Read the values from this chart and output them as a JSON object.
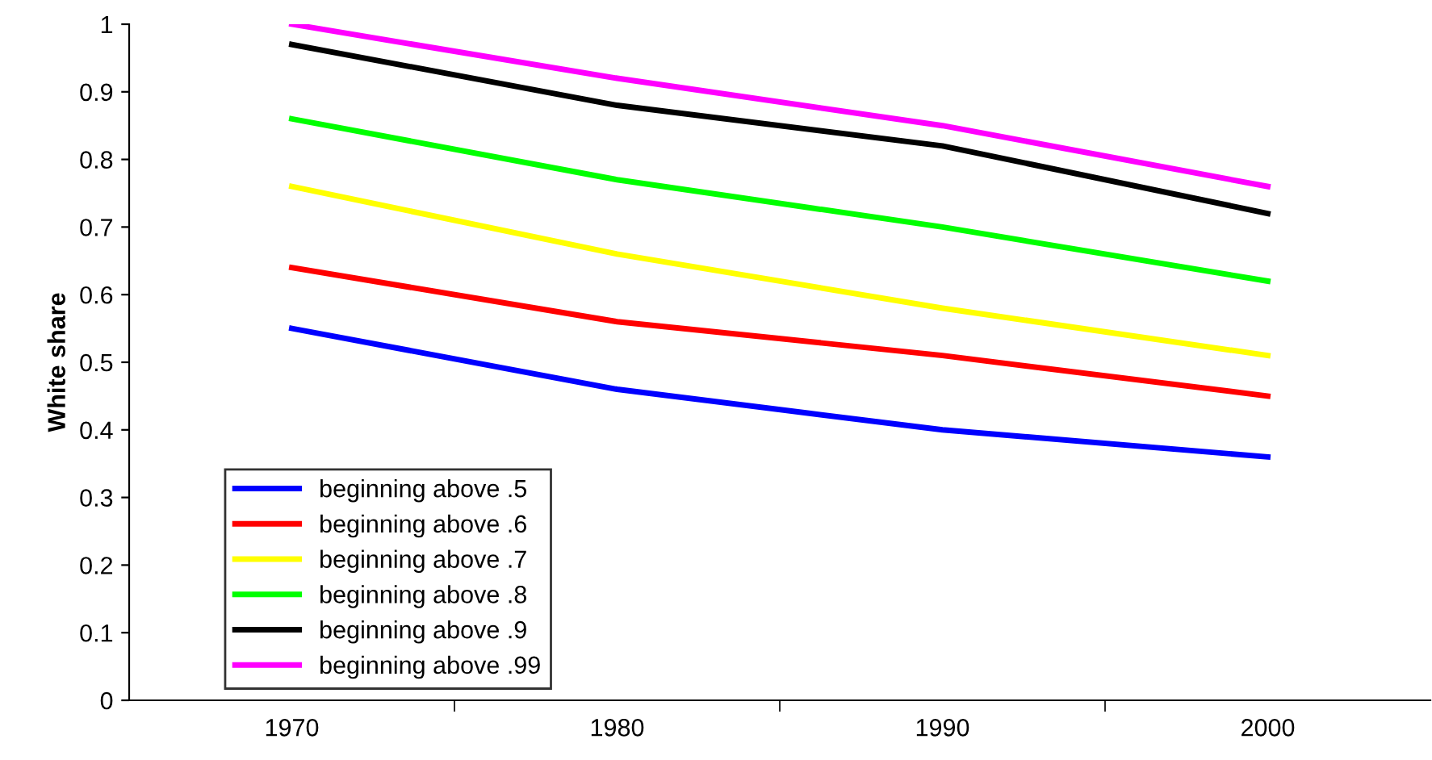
{
  "chart_data": {
    "type": "line",
    "ylabel": "White share",
    "categories": [
      "1970",
      "1980",
      "1990",
      "2000"
    ],
    "series": [
      {
        "name": "beginning above .5",
        "color": "#0000ff",
        "values": [
          0.55,
          0.46,
          0.4,
          0.36
        ]
      },
      {
        "name": "beginning above .6",
        "color": "#ff0000",
        "values": [
          0.64,
          0.56,
          0.51,
          0.45
        ]
      },
      {
        "name": "beginning above .7",
        "color": "#ffff00",
        "values": [
          0.76,
          0.66,
          0.58,
          0.51
        ]
      },
      {
        "name": "beginning above .8",
        "color": "#00ff00",
        "values": [
          0.86,
          0.77,
          0.7,
          0.62
        ]
      },
      {
        "name": "beginning above .9",
        "color": "#000000",
        "values": [
          0.97,
          0.88,
          0.82,
          0.72
        ]
      },
      {
        "name": "beginning above .99",
        "color": "#ff00ff",
        "values": [
          1.0,
          0.92,
          0.85,
          0.76
        ]
      }
    ],
    "ylim": [
      0,
      1
    ],
    "yticks": [
      0,
      0.1,
      0.2,
      0.3,
      0.4,
      0.5,
      0.6,
      0.7,
      0.8,
      0.9,
      1
    ],
    "grid": false,
    "legend": "bottom left",
    "marker": "none",
    "line_style": "solid"
  }
}
